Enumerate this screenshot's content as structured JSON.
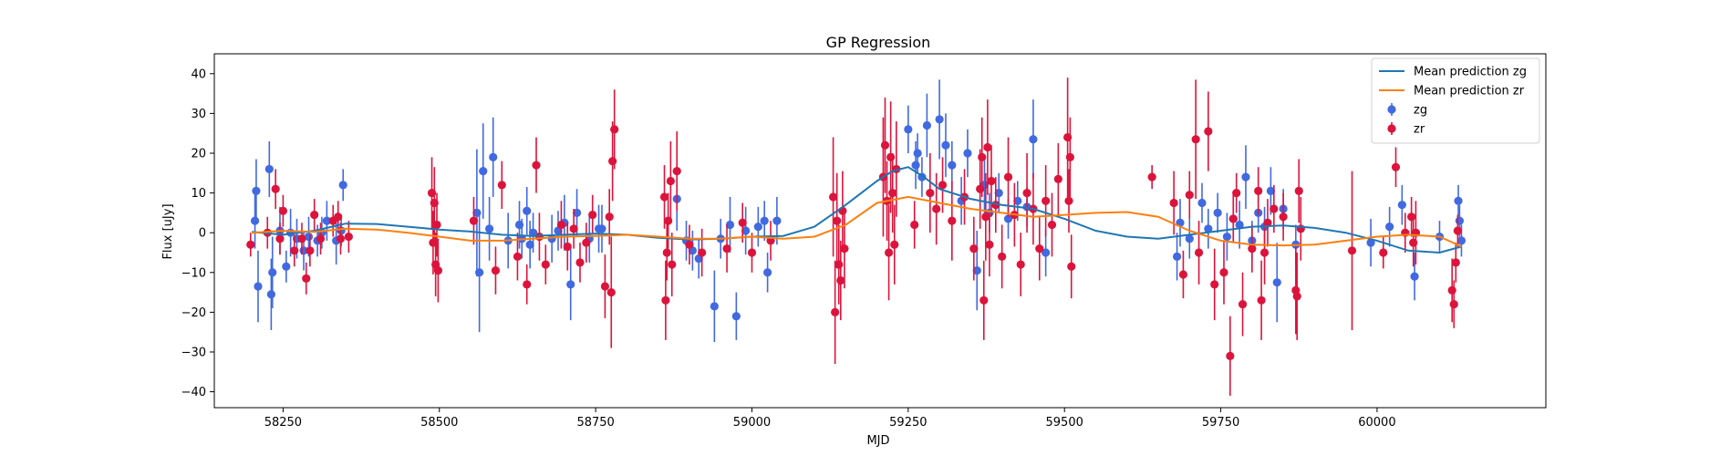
{
  "chart_data": {
    "type": "scatter",
    "title": "GP Regression",
    "xlabel": "MJD",
    "ylabel": "Flux [uJy]",
    "xlim": [
      58140,
      60270
    ],
    "ylim": [
      -44,
      45
    ],
    "x_ticks": [
      58250,
      58500,
      58750,
      59000,
      59250,
      59500,
      59750,
      60000
    ],
    "y_ticks": [
      -40,
      -30,
      -20,
      -10,
      0,
      10,
      20,
      30,
      40
    ],
    "grid": false,
    "legend": {
      "placement": "top-right",
      "entries": [
        "Mean prediction zg",
        "Mean prediction zr",
        "zg",
        "zr"
      ]
    },
    "series": [
      {
        "name": "Mean prediction zg",
        "kind": "line",
        "color": "#1f77b4",
        "x": [
          58200,
          58250,
          58300,
          58350,
          58400,
          58450,
          58500,
          58550,
          58600,
          58650,
          58700,
          58750,
          58800,
          58850,
          58900,
          58950,
          59000,
          59050,
          59100,
          59150,
          59200,
          59225,
          59250,
          59275,
          59300,
          59350,
          59400,
          59450,
          59500,
          59550,
          59600,
          59650,
          59700,
          59750,
          59800,
          59850,
          59900,
          59950,
          60000,
          60050,
          60100,
          60135
        ],
        "y": [
          0.2,
          -0.5,
          0.5,
          2.3,
          2.2,
          1.5,
          0.8,
          0.3,
          -0.5,
          -0.8,
          -0.5,
          -0.2,
          -0.5,
          -1.3,
          -1.7,
          -1.5,
          -1.0,
          -0.8,
          1.5,
          7.0,
          13.0,
          15.5,
          16.5,
          14.0,
          11.0,
          8.5,
          7.0,
          6.0,
          3.5,
          0.5,
          -1.0,
          -1.5,
          -0.5,
          0.5,
          1.5,
          1.8,
          1.2,
          0.0,
          -2.0,
          -4.5,
          -5.0,
          -3.5
        ]
      },
      {
        "name": "Mean prediction zr",
        "kind": "line",
        "color": "#ff7f0e",
        "x": [
          58200,
          58250,
          58300,
          58350,
          58400,
          58450,
          58500,
          58550,
          58600,
          58650,
          58700,
          58750,
          58800,
          58850,
          58900,
          58950,
          59000,
          59050,
          59100,
          59150,
          59200,
          59250,
          59300,
          59350,
          59400,
          59450,
          59500,
          59550,
          59600,
          59650,
          59700,
          59750,
          59800,
          59850,
          59900,
          59950,
          60000,
          60050,
          60100,
          60135
        ],
        "y": [
          0.0,
          0.5,
          0.2,
          1.0,
          0.8,
          0.0,
          -1.0,
          -2.0,
          -2.0,
          -1.5,
          -1.0,
          -0.8,
          -0.5,
          -1.0,
          -1.5,
          -1.5,
          -1.0,
          -1.5,
          -1.0,
          2.0,
          7.5,
          9.0,
          7.5,
          6.0,
          5.0,
          4.0,
          4.5,
          5.0,
          5.2,
          4.0,
          0.5,
          -2.0,
          -3.0,
          -3.2,
          -3.0,
          -2.0,
          -1.0,
          -0.5,
          -1.0,
          -3.5
        ]
      },
      {
        "name": "zg",
        "kind": "errorbar",
        "color": "#4169e1",
        "x": [
          58205,
          58207,
          58210,
          58228,
          58231,
          58233,
          58245,
          58255,
          58262,
          58272,
          58283,
          58291,
          58305,
          58312,
          58320,
          58335,
          58343,
          58346,
          58560,
          58564,
          58570,
          58580,
          58586,
          58610,
          58628,
          58632,
          58640,
          58645,
          58650,
          58680,
          58690,
          58700,
          58710,
          58720,
          58740,
          58755,
          58760,
          58880,
          58895,
          58905,
          58915,
          58940,
          58950,
          58965,
          58975,
          58990,
          59010,
          59020,
          59025,
          59040,
          59250,
          59262,
          59265,
          59272,
          59280,
          59300,
          59310,
          59320,
          59335,
          59345,
          59360,
          59372,
          59380,
          59395,
          59410,
          59425,
          59440,
          59450,
          59470,
          59680,
          59685,
          59700,
          59720,
          59730,
          59745,
          59760,
          59770,
          59780,
          59790,
          59800,
          59810,
          59820,
          59830,
          59840,
          59850,
          59870,
          59990,
          60020,
          60040,
          60060,
          60100,
          60130,
          60132,
          60135
        ],
        "y": [
          3.0,
          10.5,
          -13.5,
          16.0,
          -15.5,
          -10.0,
          0.5,
          -8.5,
          0.0,
          -1.5,
          -4.5,
          -1.0,
          -2.0,
          0.0,
          3.0,
          -2.0,
          0.5,
          12.0,
          5.0,
          -10.0,
          15.5,
          1.0,
          19.0,
          -2.0,
          2.0,
          -1.5,
          5.5,
          -3.0,
          0.0,
          -1.5,
          0.5,
          2.5,
          -13.0,
          5.0,
          -1.5,
          1.0,
          1.0,
          8.5,
          -2.0,
          -4.5,
          -6.5,
          -18.5,
          -1.5,
          2.0,
          -21.0,
          0.5,
          1.5,
          3.0,
          -10.0,
          3.0,
          26.0,
          17.0,
          20.0,
          14.0,
          27.0,
          28.5,
          22.0,
          17.0,
          8.0,
          20.0,
          -9.5,
          12.0,
          5.0,
          10.0,
          3.5,
          8.0,
          6.5,
          23.5,
          -5.0,
          -6.0,
          2.5,
          -1.5,
          7.5,
          1.0,
          5.0,
          -1.0,
          3.5,
          2.0,
          14.0,
          -2.0,
          5.0,
          1.5,
          10.5,
          -12.5,
          6.0,
          -3.0,
          -2.5,
          1.5,
          7.0,
          -11.0,
          -1.0,
          8.0,
          3.0,
          -2.0
        ],
        "err": [
          7,
          8,
          9,
          7,
          9,
          9,
          6,
          4,
          6,
          5,
          5,
          5,
          4,
          4,
          5,
          6,
          4,
          4,
          16,
          15,
          12,
          8,
          10,
          7,
          6,
          5,
          6,
          6,
          5,
          6,
          5,
          7,
          9,
          6,
          6,
          6,
          6,
          8,
          5,
          5,
          5,
          9,
          5,
          7,
          6,
          6,
          5,
          5,
          5,
          6,
          6,
          6,
          5,
          5,
          8,
          10,
          8,
          6,
          6,
          6,
          10,
          7,
          5,
          5,
          5,
          5,
          5,
          10,
          6,
          6,
          6,
          5,
          5,
          5,
          5,
          6,
          6,
          6,
          8,
          5,
          5,
          5,
          6,
          10,
          5,
          5,
          6,
          5,
          5,
          6,
          4,
          4,
          4,
          4
        ]
      },
      {
        "name": "zr",
        "kind": "errorbar",
        "color": "#dc143c",
        "x": [
          58198,
          58225,
          58238,
          58245,
          58250,
          58268,
          58280,
          58287,
          58293,
          58300,
          58310,
          58330,
          58338,
          58342,
          58355,
          58488,
          58490,
          58492,
          58494,
          58496,
          58498,
          58555,
          58590,
          58600,
          58625,
          58640,
          58655,
          58660,
          58670,
          58695,
          58705,
          58715,
          58725,
          58735,
          58745,
          58765,
          58772,
          58775,
          58777,
          58780,
          58860,
          58862,
          58864,
          58866,
          58870,
          58872,
          58880,
          58900,
          58920,
          58960,
          58985,
          59000,
          59030,
          59130,
          59133,
          59136,
          59139,
          59142,
          59145,
          59148,
          59210,
          59213,
          59216,
          59219,
          59222,
          59225,
          59228,
          59231,
          59260,
          59285,
          59295,
          59305,
          59320,
          59340,
          59355,
          59365,
          59368,
          59371,
          59374,
          59377,
          59380,
          59383,
          59390,
          59400,
          59410,
          59420,
          59430,
          59440,
          59450,
          59460,
          59470,
          59480,
          59490,
          59505,
          59507,
          59509,
          59511,
          59640,
          59675,
          59690,
          59700,
          59710,
          59715,
          59730,
          59740,
          59755,
          59765,
          59770,
          59775,
          59785,
          59800,
          59810,
          59815,
          59820,
          59825,
          59835,
          59850,
          59870,
          59872,
          59875,
          59878,
          59960,
          60010,
          60030,
          60045,
          60055,
          60058,
          60062,
          60120,
          60123,
          60126,
          60129
        ],
        "y": [
          -3.0,
          0.0,
          11.0,
          -1.5,
          5.5,
          -4.5,
          -1.5,
          -11.5,
          -4.5,
          4.5,
          -1.5,
          3.0,
          4.0,
          -1.5,
          -1.0,
          10.0,
          -2.5,
          7.5,
          -8.0,
          2.0,
          -9.5,
          3.0,
          -9.5,
          12.0,
          -6.0,
          -13.0,
          17.0,
          -1.0,
          -8.0,
          2.0,
          -3.5,
          1.0,
          -7.5,
          -2.5,
          4.5,
          -13.5,
          4.0,
          -15.0,
          18.0,
          26.0,
          9.0,
          -17.0,
          -5.0,
          3.0,
          13.0,
          -8.0,
          15.5,
          -3.0,
          -5.0,
          -4.0,
          2.5,
          -5.0,
          -2.0,
          9.0,
          -20.0,
          3.0,
          -8.0,
          -12.0,
          5.5,
          -4.0,
          14.0,
          22.0,
          8.0,
          -5.0,
          19.0,
          10.0,
          -3.0,
          16.0,
          2.0,
          10.0,
          6.0,
          12.0,
          3.0,
          9.0,
          -4.0,
          11.0,
          19.0,
          -17.0,
          4.0,
          21.5,
          -3.0,
          13.0,
          7.0,
          -6.0,
          14.0,
          4.5,
          -8.0,
          10.0,
          6.0,
          -4.0,
          8.0,
          2.0,
          13.5,
          24.0,
          8.0,
          19.0,
          -8.5,
          14.0,
          7.5,
          -10.5,
          9.5,
          23.5,
          -5.0,
          25.5,
          -13.0,
          -10.0,
          -31.0,
          3.5,
          10.0,
          -18.0,
          -4.0,
          10.5,
          -17.0,
          -5.0,
          2.5,
          6.0,
          4.0,
          -14.5,
          -16.0,
          10.5,
          1.0,
          -4.5,
          -5.0,
          16.5,
          0.0,
          4.0,
          -2.5,
          0.0,
          -14.5,
          -18.0,
          -7.5,
          0.5
        ],
        "err": [
          3,
          4,
          5,
          4,
          4,
          4,
          4,
          4,
          4,
          4,
          4,
          4,
          4,
          4,
          4,
          9,
          8,
          9,
          8,
          8,
          8,
          6,
          6,
          6,
          6,
          5,
          7,
          6,
          5,
          6,
          6,
          5,
          5,
          5,
          5,
          8,
          7,
          14,
          10,
          10,
          8,
          10,
          7,
          7,
          10,
          8,
          10,
          5,
          6,
          6,
          5,
          5,
          5,
          15,
          13,
          12,
          10,
          10,
          10,
          10,
          15,
          12,
          10,
          12,
          14,
          10,
          10,
          12,
          6,
          10,
          9,
          7,
          10,
          7,
          8,
          10,
          10,
          10,
          11,
          12,
          8,
          9,
          7,
          8,
          10,
          8,
          8,
          10,
          9,
          8,
          9,
          8,
          9,
          15,
          8,
          10,
          8,
          3,
          8,
          6,
          6,
          15,
          8,
          10,
          9,
          8,
          10,
          6,
          5,
          8,
          6,
          6,
          10,
          8,
          6,
          6,
          6,
          11,
          11,
          8,
          8,
          20,
          4,
          5,
          5,
          5,
          6,
          8,
          8,
          6,
          5,
          4
        ]
      }
    ]
  }
}
